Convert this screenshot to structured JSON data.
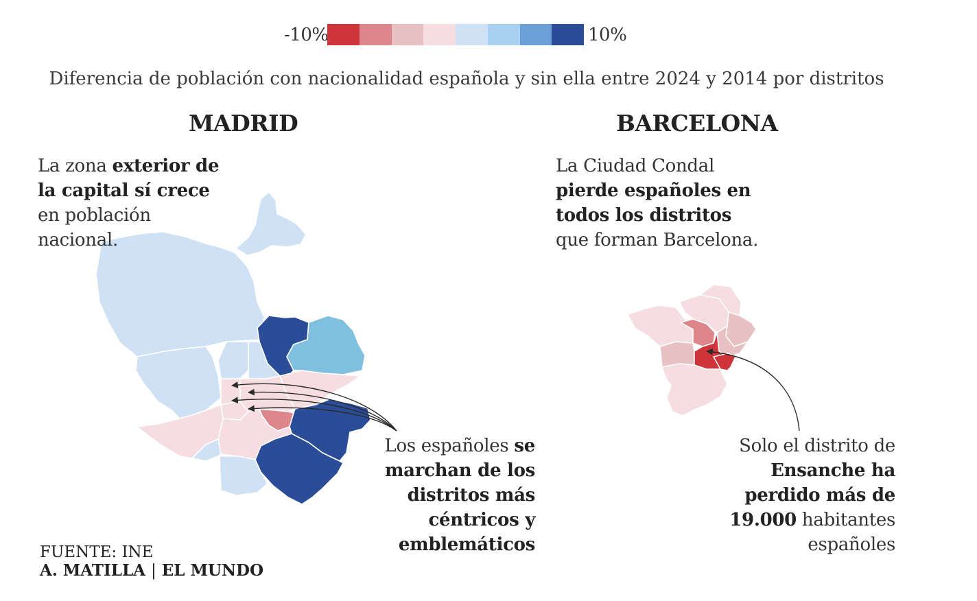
{
  "legend": {
    "min_label": "-10%",
    "max_label": "10%",
    "colors": [
      "#cf343a",
      "#dc868b",
      "#eac1c3",
      "#f5dde1",
      "#cfe1f4",
      "#a9cff1",
      "#6b9fd7",
      "#2b4d97"
    ]
  },
  "subtitle": "Diferencia de población con nacionalidad española y sin ella entre 2024 y 2014 por distritos",
  "madrid": {
    "title": "MADRID",
    "annotation": {
      "before": "La zona ",
      "bold": "exterior de la capital sí crece",
      "after": " en población nacional."
    },
    "callout": {
      "before": "Los españoles ",
      "bold": "se marchan de los distritos más céntricos y emblemáticos"
    }
  },
  "barcelona": {
    "title": "BARCELONA",
    "annotation": {
      "before": "La Ciudad Condal ",
      "bold": "pierde españoles en todos los distritos",
      "after": " que forman Barcelona."
    },
    "callout": {
      "before": "Solo el distrito de ",
      "bold": "Ensanche ha perdido más de 19.000",
      "after": " habitantes españoles"
    }
  },
  "source": {
    "line1": "FUENTE: INE",
    "author": "A. MATILLA",
    "separator": "|",
    "outlet": "EL MUNDO"
  }
}
